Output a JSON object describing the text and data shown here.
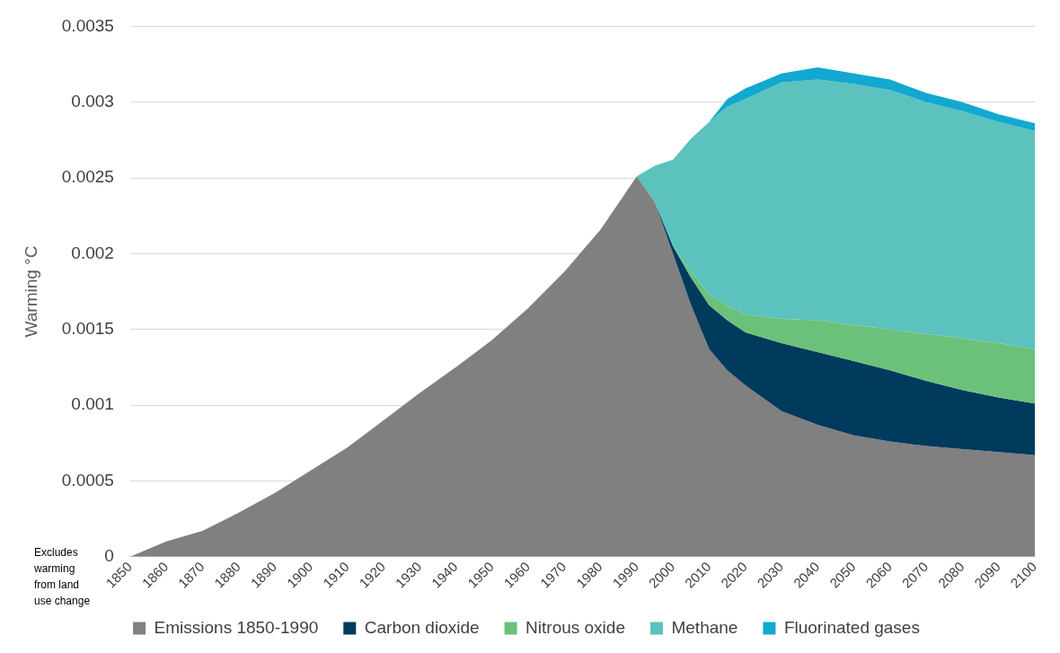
{
  "chart_data": {
    "type": "area",
    "stacked": true,
    "ylabel": "Warming °C",
    "xlim": [
      1850,
      2100
    ],
    "xticks": [
      1850,
      1860,
      1870,
      1880,
      1890,
      1900,
      1910,
      1920,
      1930,
      1940,
      1950,
      1960,
      1970,
      1980,
      1990,
      2000,
      2010,
      2020,
      2030,
      2040,
      2050,
      2060,
      2070,
      2080,
      2090,
      2100
    ],
    "ylim": [
      0,
      0.0035
    ],
    "yticks": [
      0,
      0.0005,
      0.001,
      0.0015,
      0.002,
      0.0025,
      0.003,
      0.0035
    ],
    "grid": "y",
    "legend": "bottom",
    "annotations": [
      "Excludes warming from  land use change"
    ],
    "x": [
      1850,
      1860,
      1870,
      1880,
      1890,
      1900,
      1910,
      1920,
      1930,
      1940,
      1950,
      1960,
      1970,
      1980,
      1990,
      1995,
      2000,
      2005,
      2010,
      2015,
      2020,
      2030,
      2040,
      2050,
      2060,
      2070,
      2080,
      2090,
      2100
    ],
    "series": [
      {
        "name": "Emissions 1850-1990",
        "color": "#808080",
        "values": [
          0,
          0.0001,
          0.00017,
          0.00029,
          0.00042,
          0.00057,
          0.00072,
          0.0009,
          0.00108,
          0.00125,
          0.00143,
          0.00164,
          0.00188,
          0.00216,
          0.00251,
          0.00234,
          0.002,
          0.00166,
          0.00137,
          0.00123,
          0.00113,
          0.00096,
          0.00087,
          0.0008,
          0.00076,
          0.00073,
          0.00071,
          0.00069,
          0.00067
        ]
      },
      {
        "name": "Carbon dioxide",
        "color": "#003a5d",
        "values": [
          null,
          null,
          null,
          null,
          null,
          null,
          null,
          null,
          null,
          null,
          null,
          null,
          null,
          null,
          0,
          0,
          5e-05,
          0.00018,
          0.00029,
          0.00033,
          0.00035,
          0.00045,
          0.00048,
          0.00049,
          0.00047,
          0.00043,
          0.00039,
          0.00036,
          0.00034
        ]
      },
      {
        "name": "Nitrous oxide",
        "color": "#6cc17a",
        "values": [
          null,
          null,
          null,
          null,
          null,
          null,
          null,
          null,
          null,
          null,
          null,
          null,
          null,
          null,
          0,
          0,
          0,
          4e-05,
          7e-05,
          0.0001,
          0.00012,
          0.00016,
          0.00021,
          0.00024,
          0.00027,
          0.00031,
          0.00034,
          0.00036,
          0.00036
        ]
      },
      {
        "name": "Methane",
        "color": "#5bc2bd",
        "values": [
          null,
          null,
          null,
          null,
          null,
          null,
          null,
          null,
          null,
          null,
          null,
          null,
          null,
          null,
          0,
          0.00024,
          0.00057,
          0.00088,
          0.00114,
          0.00131,
          0.00142,
          0.00156,
          0.00159,
          0.00159,
          0.00158,
          0.00153,
          0.0015,
          0.00146,
          0.00144
        ]
      },
      {
        "name": "Fluorinated gases",
        "color": "#12a8d0",
        "values": [
          null,
          null,
          null,
          null,
          null,
          null,
          null,
          null,
          null,
          null,
          null,
          null,
          null,
          null,
          0,
          0,
          0,
          0,
          0,
          5e-05,
          7e-05,
          6e-05,
          8e-05,
          7e-05,
          7e-05,
          6e-05,
          6e-05,
          5e-05,
          5e-05
        ]
      }
    ]
  }
}
